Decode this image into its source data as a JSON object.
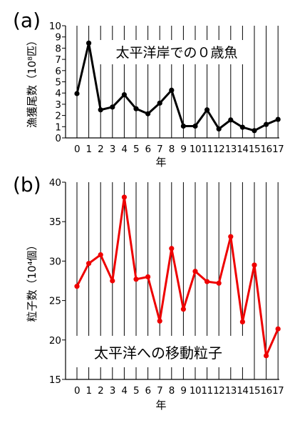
{
  "chart_data": [
    {
      "type": "line",
      "panel_label": "(a)",
      "annotation": "太平洋岸での０歳魚",
      "ylabel": "漁獲尾数（10⁸匹）",
      "xlabel": "年",
      "categories": [
        "0",
        "1",
        "2",
        "3",
        "4",
        "5",
        "6",
        "7",
        "8",
        "9",
        "10",
        "11",
        "12",
        "13",
        "14",
        "15",
        "16",
        "17"
      ],
      "yticks": [
        "0",
        "1",
        "2",
        "3",
        "4",
        "5",
        "6",
        "7",
        "8",
        "9",
        "10"
      ],
      "ylim": [
        0,
        10
      ],
      "grid": "vertical lines at each year",
      "series": [
        {
          "color": "#000000",
          "values": [
            3.95,
            8.45,
            2.5,
            2.75,
            3.85,
            2.6,
            2.15,
            3.1,
            4.25,
            1.05,
            1.05,
            2.5,
            0.8,
            1.6,
            0.95,
            0.65,
            1.2,
            1.65
          ]
        }
      ]
    },
    {
      "type": "line",
      "panel_label": "(b)",
      "annotation": "太平洋への移動粒子",
      "ylabel": "粒子数（10⁴個）",
      "xlabel": "年",
      "categories": [
        "0",
        "1",
        "2",
        "3",
        "4",
        "5",
        "6",
        "7",
        "8",
        "9",
        "10",
        "11",
        "12",
        "13",
        "14",
        "15",
        "16",
        "17"
      ],
      "yticks": [
        "15",
        "20",
        "25",
        "30",
        "35",
        "40"
      ],
      "ylim": [
        15,
        40
      ],
      "grid": "vertical lines at each year",
      "series": [
        {
          "color": "#ee0000",
          "values": [
            26.8,
            29.7,
            30.8,
            27.5,
            38.1,
            27.7,
            28.0,
            22.4,
            31.6,
            23.9,
            28.7,
            27.4,
            27.2,
            33.1,
            22.3,
            29.5,
            18.0,
            21.4
          ]
        }
      ]
    }
  ]
}
